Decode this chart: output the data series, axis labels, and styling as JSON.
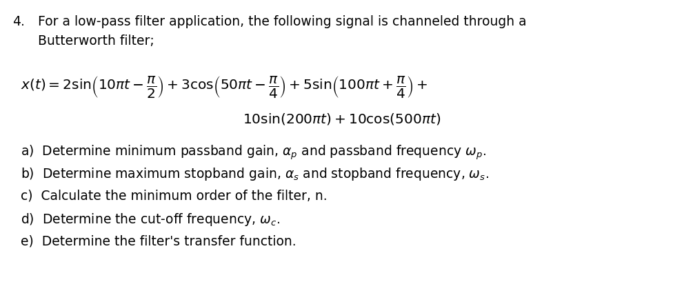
{
  "background_color": "#ffffff",
  "fig_width": 9.92,
  "fig_height": 4.09,
  "dpi": 100,
  "text_color": "#000000",
  "font_size_main": 13.5,
  "font_size_eq": 14.5,
  "font_size_items": 13.5
}
